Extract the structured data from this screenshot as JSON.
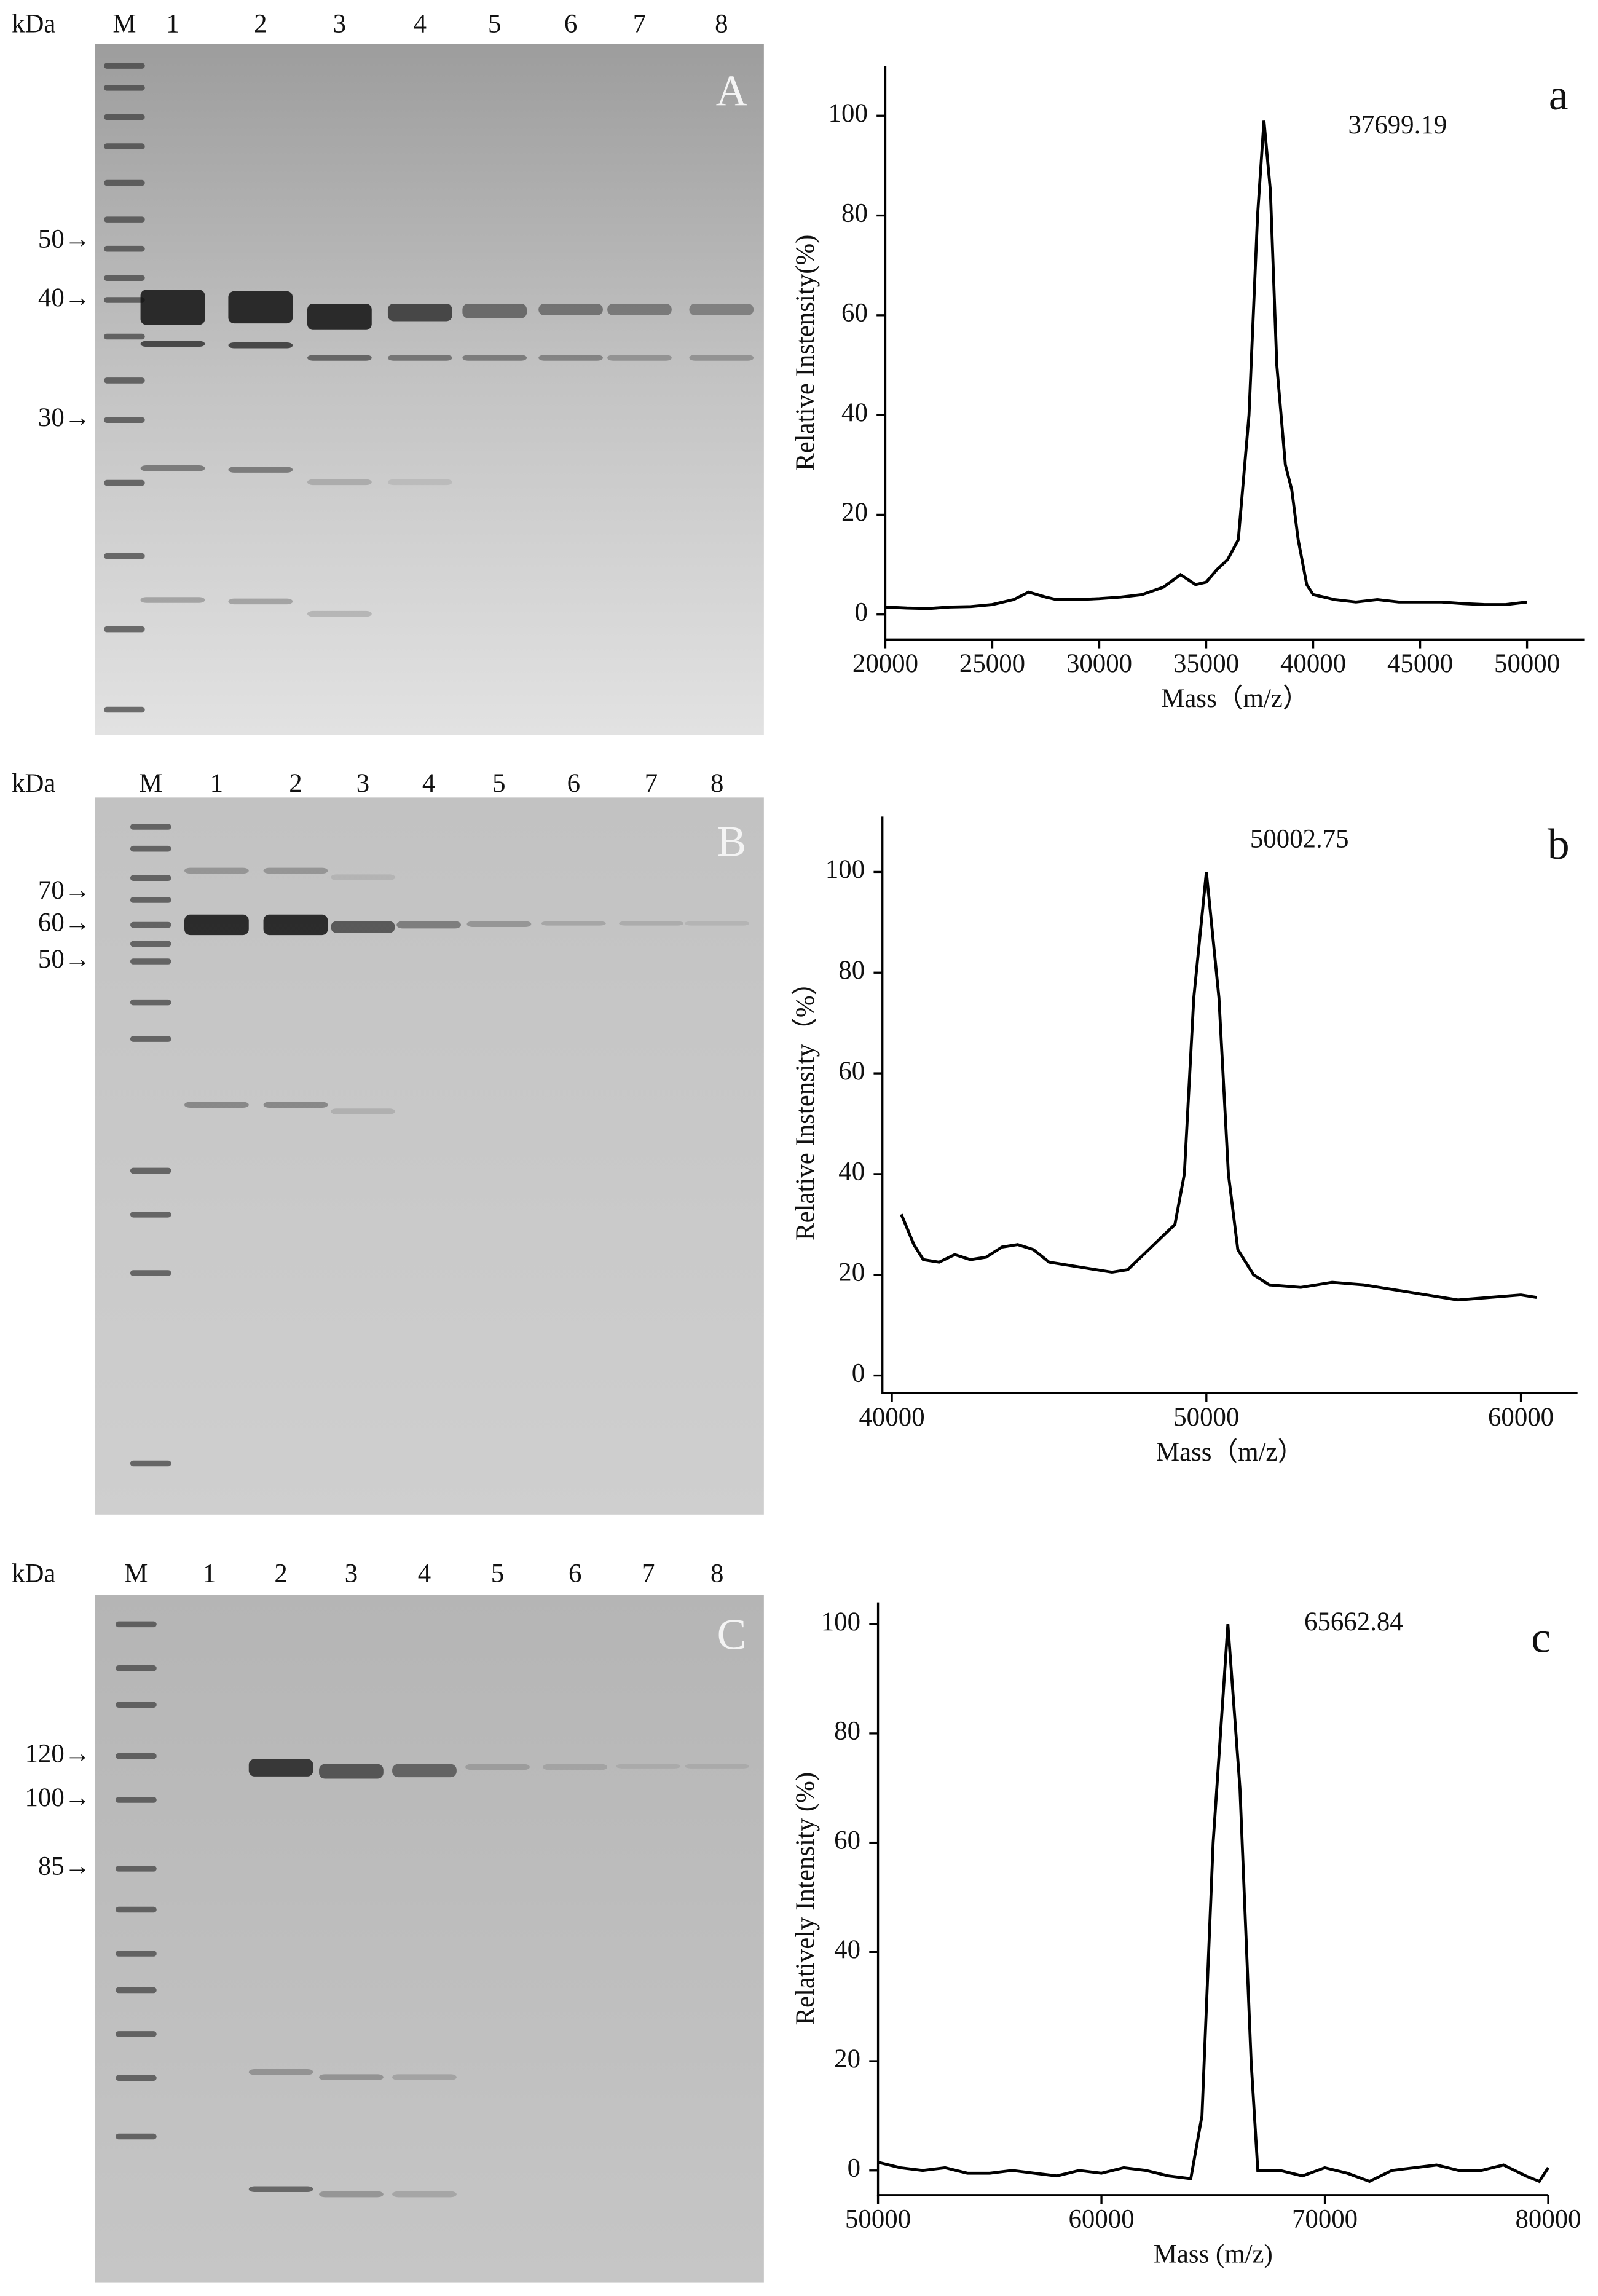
{
  "gels": [
    {
      "panel": "A",
      "unit": "kDa",
      "lanes": [
        "M",
        "1",
        "2",
        "3",
        "4",
        "5",
        "6",
        "7",
        "8"
      ],
      "markers": [
        "50→",
        "40→",
        "30→"
      ]
    },
    {
      "panel": "B",
      "unit": "kDa",
      "lanes": [
        "M",
        "1",
        "2",
        "3",
        "4",
        "5",
        "6",
        "7",
        "8"
      ],
      "markers": [
        "70→",
        "60→",
        "50→"
      ]
    },
    {
      "panel": "C",
      "unit": "kDa",
      "lanes": [
        "M",
        "1",
        "2",
        "3",
        "4",
        "5",
        "6",
        "7",
        "8"
      ],
      "markers": [
        "120→",
        "100→",
        "85→"
      ]
    }
  ],
  "chart_data": [
    {
      "type": "line",
      "panel_label": "a",
      "annotation": "37699.19",
      "x_label": "Mass（m/z）",
      "y_label": "Relative Instensity(%)",
      "xlim": [
        20000,
        52700
      ],
      "xticks": [
        20000,
        25000,
        30000,
        35000,
        40000,
        45000,
        50000
      ],
      "ylim": [
        -5,
        110
      ],
      "yticks": [
        0,
        20,
        40,
        60,
        80,
        100
      ],
      "color": "#000000",
      "x": [
        20000,
        21000,
        22000,
        23000,
        24000,
        25000,
        26000,
        26700,
        27500,
        28000,
        29000,
        30000,
        31000,
        32000,
        33000,
        33800,
        34500,
        35000,
        35500,
        36000,
        36500,
        37000,
        37400,
        37700,
        38000,
        38300,
        38700,
        39000,
        39300,
        39700,
        40000,
        41000,
        42000,
        43000,
        44000,
        45000,
        46000,
        47000,
        48000,
        49000,
        50000
      ],
      "values": [
        1.5,
        1.3,
        1.2,
        1.5,
        1.6,
        2,
        3,
        4.5,
        3.5,
        3,
        3,
        3.2,
        3.5,
        4,
        5.5,
        8,
        6,
        6.5,
        9,
        11,
        15,
        40,
        80,
        99,
        85,
        50,
        30,
        25,
        15,
        6,
        4,
        3,
        2.5,
        3,
        2.5,
        2.5,
        2.5,
        2.2,
        2,
        2,
        2.5
      ]
    },
    {
      "type": "line",
      "panel_label": "b",
      "annotation": "50002.75",
      "x_label": "Mass（m/z）",
      "y_label": "Relative Instensity（%）",
      "xlim": [
        39700,
        61800
      ],
      "xticks": [
        40000,
        50000,
        60000
      ],
      "ylim": [
        -3.5,
        111
      ],
      "yticks": [
        0,
        20,
        40,
        60,
        80,
        100
      ],
      "color": "#000000",
      "x": [
        40300,
        40700,
        41000,
        41500,
        42000,
        42500,
        43000,
        43500,
        44000,
        44500,
        45000,
        46000,
        47000,
        47500,
        48000,
        48500,
        49000,
        49300,
        49600,
        50000,
        50400,
        50700,
        51000,
        51500,
        52000,
        53000,
        54000,
        55000,
        56000,
        57000,
        58000,
        59000,
        60000,
        60500
      ],
      "values": [
        32,
        26,
        23,
        22.5,
        24,
        23,
        23.5,
        25.5,
        26,
        25,
        22.5,
        21.5,
        20.5,
        21,
        24,
        27,
        30,
        40,
        75,
        100,
        75,
        40,
        25,
        20,
        18,
        17.5,
        18.5,
        18,
        17,
        16,
        15,
        15.5,
        16,
        15.5
      ]
    },
    {
      "type": "line",
      "panel_label": "c",
      "annotation": "65662.84",
      "x_label": "Mass (m/z)",
      "y_label": "Relatively Intensity (%)",
      "xlim": [
        50000,
        80000
      ],
      "xticks": [
        50000,
        60000,
        70000,
        80000
      ],
      "ylim": [
        -4.5,
        104
      ],
      "yticks": [
        0,
        20,
        40,
        60,
        80,
        100
      ],
      "color": "#000000",
      "x": [
        50000,
        51000,
        52000,
        53000,
        54000,
        55000,
        56000,
        57000,
        58000,
        59000,
        60000,
        61000,
        62000,
        63000,
        64000,
        64500,
        65000,
        65660,
        66200,
        66700,
        67000,
        68000,
        69000,
        70000,
        71000,
        72000,
        73000,
        74000,
        75000,
        76000,
        77000,
        78000,
        79000,
        79600,
        80000
      ],
      "values": [
        1.5,
        0.5,
        0,
        0.5,
        -0.5,
        -0.5,
        0,
        -0.5,
        -1,
        0,
        -0.5,
        0.5,
        0,
        -1,
        -1.5,
        10,
        60,
        100,
        70,
        20,
        0,
        0,
        -1,
        0.5,
        -0.5,
        -2,
        0,
        0.5,
        1,
        0,
        0,
        1,
        -1,
        -2,
        0.5
      ]
    }
  ]
}
